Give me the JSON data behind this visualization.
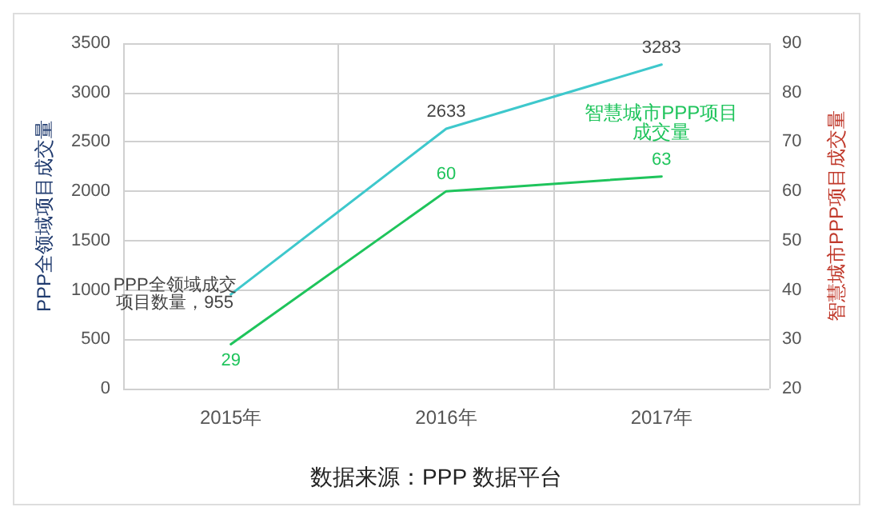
{
  "chart_data": {
    "type": "line",
    "categories": [
      "2015年",
      "2016年",
      "2017年"
    ],
    "ylabel": "PPP全领域项目成交量",
    "y2label": "智慧城市PPP项目成交量",
    "ylim": [
      0,
      3500
    ],
    "yticks": [
      0,
      500,
      1000,
      1500,
      2000,
      2500,
      3000,
      3500
    ],
    "y2lim": [
      20,
      90
    ],
    "y2ticks": [
      20,
      30,
      40,
      50,
      60,
      70,
      80,
      90
    ],
    "series": [
      {
        "color": "#3ec8cc",
        "values": [
          955,
          2633,
          3283
        ],
        "value_labels": [
          "PPP全领域成交项目数量，955",
          "2633",
          "3283"
        ]
      },
      {
        "name": "智慧城市PPP项目成交量",
        "color": "#1fc45c",
        "axis": "y2",
        "values": [
          29,
          60,
          63
        ],
        "value_labels": [
          "29",
          "60",
          "63"
        ]
      }
    ],
    "annotations": [
      "数据来源：PPP 数据平台"
    ],
    "grid": true,
    "legend": false,
    "marker": "none",
    "line_style": "solid"
  }
}
